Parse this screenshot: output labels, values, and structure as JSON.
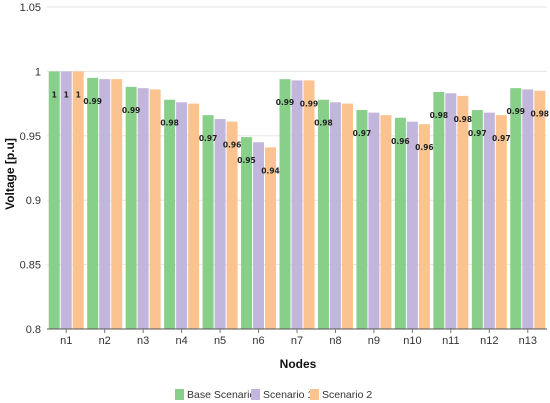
{
  "chart_data": {
    "type": "bar",
    "xlabel": "Nodes",
    "ylabel": "Voltage [p.u]",
    "ylim": [
      0.8,
      1.05
    ],
    "yticks": [
      "0.8",
      "0.85",
      "0.9",
      "0.95",
      "1",
      "1.05"
    ],
    "ytick_values": [
      0.8,
      0.85,
      0.9,
      0.95,
      1.0,
      1.05
    ],
    "grid": "horizontal",
    "legend_position": "bottom",
    "categories": [
      "n1",
      "n2",
      "n3",
      "n4",
      "n5",
      "n6",
      "n7",
      "n8",
      "n9",
      "n10",
      "n11",
      "n12",
      "n13"
    ],
    "series": [
      {
        "name": "Base Scenario",
        "color": "#88d08a",
        "values": [
          1.0,
          0.995,
          0.988,
          0.978,
          0.966,
          0.949,
          0.994,
          0.978,
          0.97,
          0.964,
          0.984,
          0.97,
          0.987
        ],
        "data_labels": [
          "1",
          "0.99",
          "0.99",
          "0.98",
          "0.97",
          "0.95",
          "0.99",
          "0.98",
          "0.97",
          "0.96",
          "0.98",
          "0.97",
          "0.99"
        ]
      },
      {
        "name": "Scenario 1",
        "color": "#c3b6dc",
        "values": [
          1.0,
          0.994,
          0.987,
          0.976,
          0.963,
          0.945,
          0.993,
          0.976,
          0.968,
          0.961,
          0.983,
          0.968,
          0.986
        ],
        "data_labels": [
          "1",
          "",
          "",
          "",
          "",
          "",
          "",
          "",
          "",
          "",
          "",
          "",
          ""
        ]
      },
      {
        "name": "Scenario 2",
        "color": "#fbc38f",
        "values": [
          1.0,
          0.994,
          0.986,
          0.975,
          0.961,
          0.941,
          0.993,
          0.975,
          0.966,
          0.959,
          0.981,
          0.966,
          0.985
        ],
        "data_labels": [
          "1",
          "",
          "",
          "",
          "0.96",
          "0.94",
          "0.99",
          "",
          "",
          "0.96",
          "0.98",
          "0.97",
          "0.98"
        ]
      }
    ]
  }
}
